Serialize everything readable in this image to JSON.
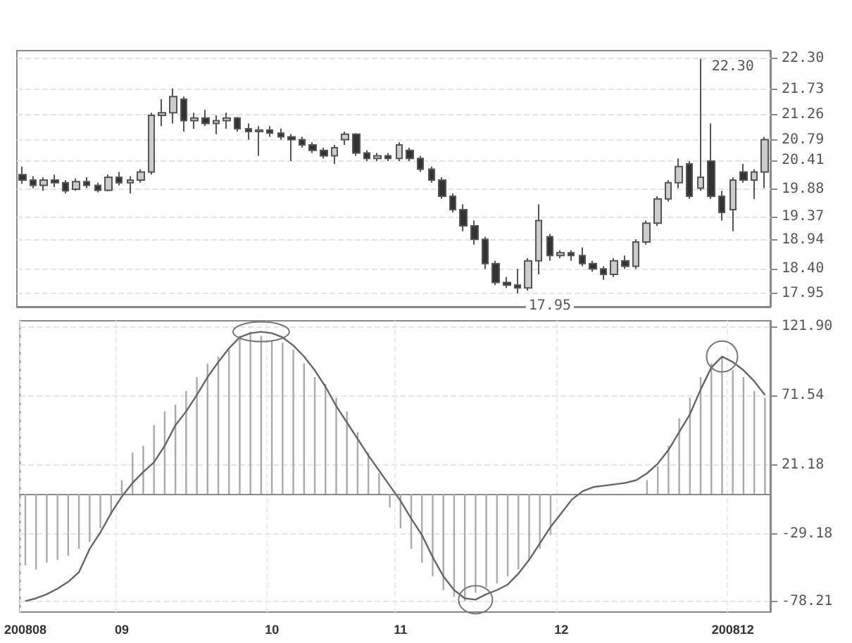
{
  "chart_data": [
    {
      "type": "candlestick",
      "categories": [
        null,
        null,
        null,
        null,
        null,
        null,
        null,
        null,
        null,
        null,
        null,
        null,
        null,
        null,
        null,
        null,
        null,
        null,
        null,
        null,
        null,
        null,
        null,
        null,
        null,
        null,
        null,
        null,
        null,
        null,
        null,
        null,
        null,
        null,
        null,
        null,
        null,
        null,
        null,
        null,
        null,
        null,
        null,
        null,
        null,
        null,
        null,
        null,
        null,
        null,
        null,
        null,
        null,
        null,
        null,
        null,
        null,
        null,
        null,
        null,
        null,
        null,
        null,
        null,
        null,
        null,
        null,
        null,
        null,
        null
      ],
      "ohlc": [
        [
          20.15,
          20.3,
          19.98,
          20.05
        ],
        [
          20.05,
          20.12,
          19.9,
          19.95
        ],
        [
          19.95,
          20.1,
          19.85,
          20.05
        ],
        [
          20.05,
          20.15,
          19.92,
          20.0
        ],
        [
          20.0,
          20.05,
          19.8,
          19.85
        ],
        [
          19.88,
          20.08,
          19.85,
          20.02
        ],
        [
          20.02,
          20.1,
          19.9,
          19.95
        ],
        [
          19.95,
          20.0,
          19.82,
          19.86
        ],
        [
          19.86,
          20.15,
          19.84,
          20.1
        ],
        [
          20.1,
          20.2,
          19.95,
          20.0
        ],
        [
          20.0,
          20.12,
          19.8,
          20.05
        ],
        [
          20.05,
          20.25,
          20.0,
          20.2
        ],
        [
          20.2,
          21.3,
          20.15,
          21.25
        ],
        [
          21.25,
          21.55,
          21.05,
          21.3
        ],
        [
          21.3,
          21.75,
          21.1,
          21.6
        ],
        [
          21.55,
          21.6,
          20.95,
          21.15
        ],
        [
          21.15,
          21.3,
          21.0,
          21.2
        ],
        [
          21.2,
          21.35,
          21.05,
          21.1
        ],
        [
          21.1,
          21.25,
          20.9,
          21.15
        ],
        [
          21.15,
          21.3,
          21.0,
          21.2
        ],
        [
          21.2,
          21.22,
          20.95,
          21.0
        ],
        [
          21.0,
          21.1,
          20.8,
          20.95
        ],
        [
          20.95,
          21.05,
          20.5,
          20.98
        ],
        [
          20.98,
          21.05,
          20.85,
          20.92
        ],
        [
          20.92,
          21.0,
          20.8,
          20.85
        ],
        [
          20.85,
          20.9,
          20.4,
          20.8
        ],
        [
          20.8,
          20.85,
          20.65,
          20.7
        ],
        [
          20.7,
          20.75,
          20.55,
          20.6
        ],
        [
          20.6,
          20.65,
          20.45,
          20.5
        ],
        [
          20.5,
          20.7,
          20.35,
          20.65
        ],
        [
          20.8,
          20.95,
          20.7,
          20.9
        ],
        [
          20.9,
          20.92,
          20.5,
          20.55
        ],
        [
          20.55,
          20.6,
          20.4,
          20.45
        ],
        [
          20.45,
          20.55,
          20.4,
          20.5
        ],
        [
          20.5,
          20.55,
          20.4,
          20.45
        ],
        [
          20.45,
          20.75,
          20.4,
          20.7
        ],
        [
          20.6,
          20.65,
          20.4,
          20.45
        ],
        [
          20.45,
          20.5,
          20.2,
          20.25
        ],
        [
          20.25,
          20.3,
          20.0,
          20.05
        ],
        [
          20.05,
          20.1,
          19.7,
          19.75
        ],
        [
          19.75,
          19.8,
          19.45,
          19.5
        ],
        [
          19.5,
          19.6,
          19.1,
          19.2
        ],
        [
          19.2,
          19.3,
          18.85,
          18.95
        ],
        [
          18.95,
          19.0,
          18.4,
          18.5
        ],
        [
          18.5,
          18.55,
          18.1,
          18.15
        ],
        [
          18.15,
          18.25,
          18.05,
          18.1
        ],
        [
          18.1,
          18.4,
          17.95,
          18.05
        ],
        [
          18.05,
          18.6,
          18.0,
          18.55
        ],
        [
          18.55,
          19.6,
          18.3,
          19.3
        ],
        [
          19.0,
          19.05,
          18.55,
          18.65
        ],
        [
          18.65,
          18.75,
          18.6,
          18.7
        ],
        [
          18.7,
          18.75,
          18.55,
          18.65
        ],
        [
          18.65,
          18.8,
          18.45,
          18.5
        ],
        [
          18.5,
          18.55,
          18.35,
          18.4
        ],
        [
          18.4,
          18.45,
          18.2,
          18.3
        ],
        [
          18.3,
          18.6,
          18.25,
          18.55
        ],
        [
          18.55,
          18.65,
          18.4,
          18.45
        ],
        [
          18.45,
          18.95,
          18.4,
          18.9
        ],
        [
          18.9,
          19.3,
          18.85,
          19.25
        ],
        [
          19.25,
          19.75,
          19.2,
          19.7
        ],
        [
          19.7,
          20.05,
          19.65,
          20.0
        ],
        [
          20.0,
          20.45,
          19.9,
          20.3
        ],
        [
          20.35,
          20.4,
          19.7,
          19.75
        ],
        [
          19.9,
          22.3,
          19.85,
          20.1
        ],
        [
          20.4,
          21.1,
          19.7,
          19.75
        ],
        [
          19.75,
          19.85,
          19.3,
          19.45
        ],
        [
          19.5,
          20.1,
          19.1,
          20.05
        ],
        [
          20.2,
          20.35,
          20.0,
          20.05
        ],
        [
          20.05,
          20.25,
          19.7,
          20.2
        ],
        [
          20.2,
          20.85,
          19.9,
          20.8
        ]
      ],
      "colors": [
        "#333333",
        "#333333",
        "#cccccc",
        "#333333",
        "#333333",
        "#cccccc",
        "#333333",
        "#333333",
        "#cccccc",
        "#333333",
        "#cccccc",
        "#cccccc",
        "#cccccc",
        "#cccccc",
        "#cccccc",
        "#333333",
        "#cccccc",
        "#333333",
        "#cccccc",
        "#cccccc",
        "#333333",
        "#333333",
        "#cccccc",
        "#333333",
        "#333333",
        "#333333",
        "#333333",
        "#333333",
        "#333333",
        "#cccccc",
        "#cccccc",
        "#333333",
        "#333333",
        "#cccccc",
        "#333333",
        "#cccccc",
        "#333333",
        "#333333",
        "#333333",
        "#333333",
        "#333333",
        "#333333",
        "#333333",
        "#333333",
        "#333333",
        "#333333",
        "#333333",
        "#cccccc",
        "#cccccc",
        "#333333",
        "#cccccc",
        "#333333",
        "#333333",
        "#333333",
        "#333333",
        "#cccccc",
        "#333333",
        "#cccccc",
        "#cccccc",
        "#cccccc",
        "#cccccc",
        "#cccccc",
        "#333333",
        "#cccccc",
        "#333333",
        "#333333",
        "#cccccc",
        "#333333",
        "#cccccc",
        "#cccccc"
      ],
      "ylim": [
        17.7,
        22.45
      ],
      "yticks": [
        {
          "value": 22.3,
          "label": "22.30"
        },
        21.73,
        21.26,
        20.79,
        20.41,
        19.88,
        19.37,
        18.94,
        {
          "value": 18.4,
          "label": "18.40"
        },
        17.95
      ],
      "annotations": [
        "22.30",
        "17.95"
      ],
      "tick_labels": "y",
      "grid": true
    },
    {
      "type": "bar",
      "categories": [
        "200808",
        null,
        null,
        null,
        null,
        null,
        null,
        null,
        null,
        "09",
        null,
        null,
        null,
        null,
        null,
        null,
        null,
        null,
        null,
        null,
        null,
        null,
        null,
        "10",
        null,
        null,
        null,
        null,
        null,
        null,
        null,
        null,
        null,
        null,
        null,
        "11",
        null,
        null,
        null,
        null,
        null,
        null,
        null,
        null,
        null,
        null,
        null,
        null,
        null,
        null,
        "12",
        null,
        null,
        null,
        null,
        null,
        null,
        null,
        null,
        null,
        null,
        null,
        null,
        null,
        null,
        null,
        "200812",
        null,
        null,
        null
      ],
      "series": [
        {
          "type": "bar",
          "color": "#aaaaaa",
          "values": [
            -52,
            -55,
            -50,
            -48,
            -45,
            -40,
            -35,
            -25,
            -15,
            10,
            30,
            35,
            50,
            60,
            65,
            75,
            85,
            95,
            100,
            105,
            115,
            118,
            115,
            112,
            110,
            105,
            95,
            85,
            80,
            70,
            60,
            45,
            30,
            15,
            -10,
            -25,
            -40,
            -50,
            -60,
            -70,
            -75,
            -78,
            -72,
            -68,
            -65,
            -60,
            -55,
            -48,
            -40,
            -30,
            0,
            0,
            0,
            0,
            0,
            0,
            0,
            0,
            10,
            20,
            35,
            55,
            70,
            85,
            95,
            100,
            90,
            85,
            75,
            70
          ]
        },
        {
          "type": "line",
          "color": "#666666",
          "values": [
            -78,
            -76,
            -73,
            -69,
            -64,
            -57,
            -40,
            -28,
            -14,
            -2,
            8,
            16,
            23,
            35,
            50,
            60,
            72,
            85,
            96,
            106,
            114,
            117,
            118,
            117,
            114,
            108,
            100,
            90,
            78,
            64,
            52,
            40,
            28,
            17,
            6,
            -5,
            -18,
            -30,
            -46,
            -60,
            -70,
            -76,
            -77,
            -73,
            -70,
            -66,
            -58,
            -48,
            -36,
            -24,
            -14,
            -4,
            2,
            5,
            6,
            7,
            8,
            10,
            15,
            22,
            32,
            45,
            58,
            76,
            92,
            100,
            96,
            90,
            82,
            72
          ]
        }
      ],
      "ylim": [
        -86,
        126
      ],
      "yticks": [
        {
          "value": 121.9,
          "label": "121.90"
        },
        71.54,
        21.18,
        -29.18,
        -78.21
      ],
      "grid": true
    }
  ]
}
